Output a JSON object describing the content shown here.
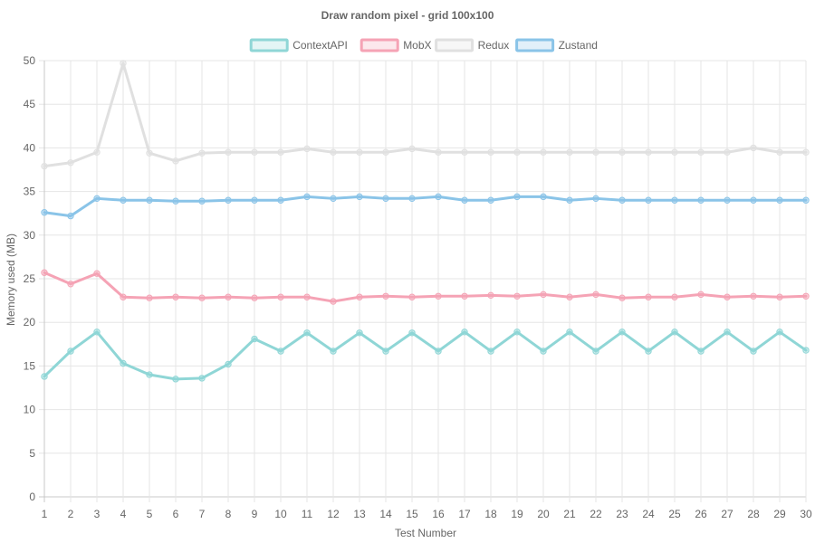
{
  "chart_data": {
    "type": "line",
    "title": "Draw random pixel - grid 100x100",
    "xlabel": "Test Number",
    "ylabel": "Memory used (MB)",
    "x": [
      1,
      2,
      3,
      4,
      5,
      6,
      7,
      8,
      9,
      10,
      11,
      12,
      13,
      14,
      15,
      16,
      17,
      18,
      19,
      20,
      21,
      22,
      23,
      24,
      25,
      26,
      27,
      28,
      29,
      30
    ],
    "ylim": [
      0,
      50
    ],
    "yticks": [
      0,
      5,
      10,
      15,
      20,
      25,
      30,
      35,
      40,
      45,
      50
    ],
    "grid": true,
    "legend_position": "top-center",
    "series": [
      {
        "name": "ContextAPI",
        "color": "#8fd6d6",
        "values": [
          13.8,
          16.7,
          18.9,
          15.3,
          14.0,
          13.5,
          13.6,
          15.2,
          18.1,
          16.7,
          18.8,
          16.7,
          18.8,
          16.7,
          18.8,
          16.7,
          18.9,
          16.7,
          18.9,
          16.7,
          18.9,
          16.7,
          18.9,
          16.7,
          18.9,
          16.7,
          18.9,
          16.7,
          18.9,
          16.8
        ]
      },
      {
        "name": "MobX",
        "color": "#f5a3b5",
        "values": [
          25.7,
          24.4,
          25.6,
          22.9,
          22.8,
          22.9,
          22.8,
          22.9,
          22.8,
          22.9,
          22.9,
          22.4,
          22.9,
          23.0,
          22.9,
          23.0,
          23.0,
          23.1,
          23.0,
          23.2,
          22.9,
          23.2,
          22.8,
          22.9,
          22.9,
          23.2,
          22.9,
          23.0,
          22.9,
          23.0
        ]
      },
      {
        "name": "Redux",
        "color": "#e0e0e0",
        "values": [
          37.9,
          38.3,
          39.5,
          49.7,
          39.4,
          38.5,
          39.4,
          39.5,
          39.5,
          39.5,
          39.9,
          39.5,
          39.5,
          39.5,
          39.9,
          39.5,
          39.5,
          39.5,
          39.5,
          39.5,
          39.5,
          39.5,
          39.5,
          39.5,
          39.5,
          39.5,
          39.5,
          40.0,
          39.5,
          39.5
        ]
      },
      {
        "name": "Zustand",
        "color": "#8ac4e8",
        "values": [
          32.6,
          32.2,
          34.2,
          34.0,
          34.0,
          33.9,
          33.9,
          34.0,
          34.0,
          34.0,
          34.4,
          34.2,
          34.4,
          34.2,
          34.2,
          34.4,
          34.0,
          34.0,
          34.4,
          34.4,
          34.0,
          34.2,
          34.0,
          34.0,
          34.0,
          34.0,
          34.0,
          34.0,
          34.0,
          34.0
        ]
      }
    ]
  }
}
